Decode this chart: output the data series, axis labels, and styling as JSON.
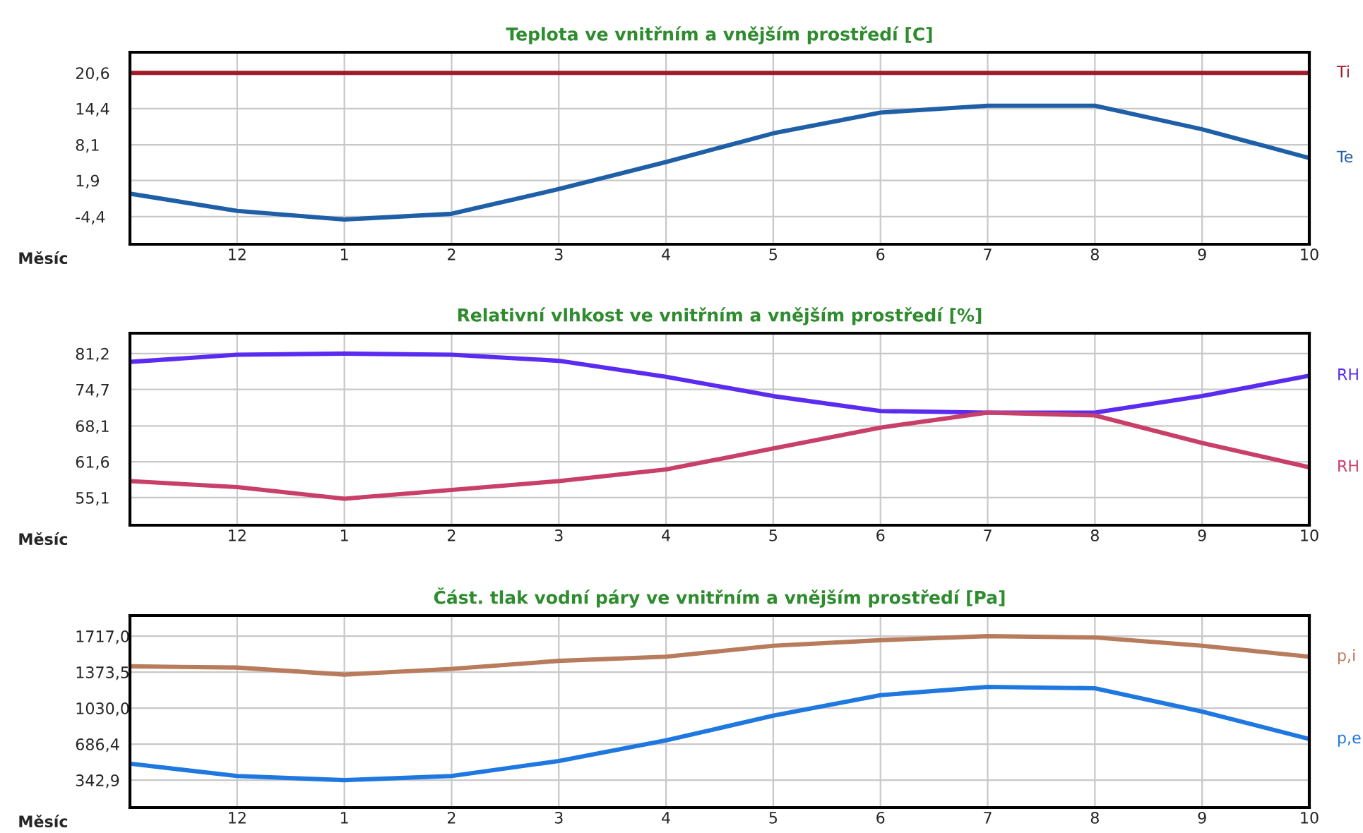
{
  "chart_data": [
    {
      "type": "line",
      "title": "Teplota ve vnitřním a vnějším prostředí [C]",
      "xlabel": "Měsíc",
      "categories": [
        null,
        "12",
        "1",
        "2",
        "3",
        "4",
        "5",
        "6",
        "7",
        "8",
        "9",
        "10"
      ],
      "ylim": [
        -9.2,
        24.2
      ],
      "yticks": [
        {
          "value": -4.4,
          "label": "-4,4"
        },
        {
          "value": 1.9,
          "label": "1,9"
        },
        {
          "value": 8.1,
          "label": "8,1"
        },
        {
          "value": 14.4,
          "label": "14,4"
        },
        {
          "value": 20.6,
          "label": "20,6"
        }
      ],
      "grid": true,
      "series": [
        {
          "name": "Ti",
          "color": "#a01c28",
          "values": [
            20.6,
            20.6,
            20.6,
            20.6,
            20.6,
            20.6,
            20.6,
            20.6,
            20.6,
            20.6,
            20.6,
            20.6
          ]
        },
        {
          "name": "Te",
          "color": "#1f5fa8",
          "values": [
            -0.4,
            -3.4,
            -4.9,
            -3.9,
            0.4,
            5.1,
            10.1,
            13.7,
            14.9,
            14.9,
            10.8,
            5.8
          ]
        }
      ]
    },
    {
      "type": "line",
      "title": "Relativní vlhkost ve vnitřním a vnějším prostředí [%]",
      "xlabel": "Měsíc",
      "categories": [
        null,
        "12",
        "1",
        "2",
        "3",
        "4",
        "5",
        "6",
        "7",
        "8",
        "9",
        "10"
      ],
      "ylim": [
        50.1,
        84.9
      ],
      "yticks": [
        {
          "value": 55.1,
          "label": "55,1"
        },
        {
          "value": 61.6,
          "label": "61,6"
        },
        {
          "value": 68.1,
          "label": "68,1"
        },
        {
          "value": 74.7,
          "label": "74,7"
        },
        {
          "value": 81.2,
          "label": "81,2"
        }
      ],
      "grid": true,
      "series": [
        {
          "name": "RH",
          "color": "#5b2bf0",
          "values": [
            79.7,
            81.0,
            81.2,
            81.0,
            79.9,
            77.0,
            73.5,
            70.8,
            70.5,
            70.5,
            73.5,
            77.2
          ]
        },
        {
          "name": "RH",
          "color": "#c8406a",
          "values": [
            58.1,
            57.0,
            54.9,
            56.5,
            58.1,
            60.2,
            64.0,
            67.8,
            70.5,
            70.0,
            65.0,
            60.6
          ]
        }
      ]
    },
    {
      "type": "line",
      "title": "Část. tlak vodní páry ve vnitřním a vnějším prostředí [Pa]",
      "xlabel": "Měsíc",
      "categories": [
        null,
        "12",
        "1",
        "2",
        "3",
        "4",
        "5",
        "6",
        "7",
        "8",
        "9",
        "10"
      ],
      "ylim": [
        81,
        1913
      ],
      "yticks": [
        {
          "value": 342.9,
          "label": "342,9"
        },
        {
          "value": 686.4,
          "label": "686,4"
        },
        {
          "value": 1030.0,
          "label": "1030,0"
        },
        {
          "value": 1373.5,
          "label": "1373,5"
        },
        {
          "value": 1717.0,
          "label": "1717,0"
        }
      ],
      "grid": true,
      "series": [
        {
          "name": "p,i",
          "color": "#b87c5c",
          "values": [
            1429,
            1417,
            1350,
            1404,
            1481,
            1521,
            1625,
            1678,
            1717,
            1704,
            1625,
            1521
          ]
        },
        {
          "name": "p,e",
          "color": "#1e78e0",
          "values": [
            500,
            382,
            343,
            382,
            526,
            722,
            958,
            1154,
            1233,
            1219,
            997,
            735
          ]
        }
      ]
    }
  ]
}
